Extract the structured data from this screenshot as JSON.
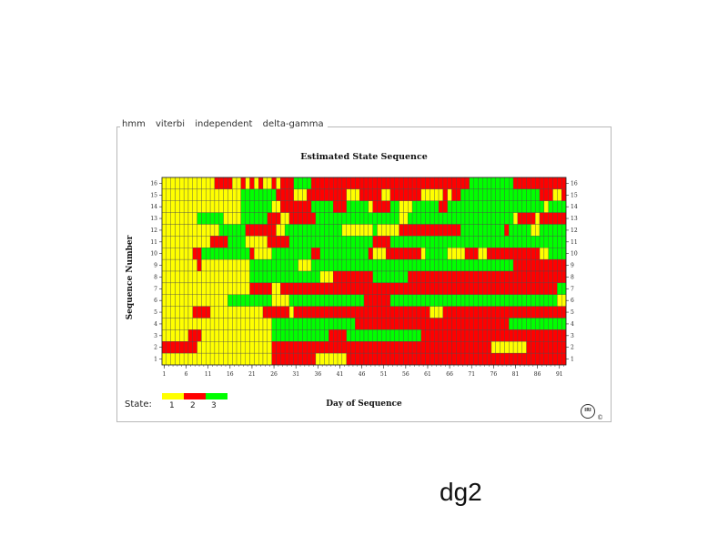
{
  "breadcrumb": [
    "hmm",
    "viterbi",
    "independent",
    "delta-gamma"
  ],
  "caption": "dg2",
  "logo_text": "IRI",
  "logo_mark": "©",
  "legend": {
    "label": "State:",
    "items": [
      {
        "label": "1",
        "color": "#ffff00"
      },
      {
        "label": "2",
        "color": "#ff0000"
      },
      {
        "label": "3",
        "color": "#00ff00"
      }
    ]
  },
  "chart_data": {
    "type": "heatmap",
    "title": "Estimated State Sequence",
    "xlabel": "Day of Sequence",
    "ylabel": "Sequence Number",
    "x_ticks": [
      1,
      6,
      11,
      16,
      21,
      26,
      31,
      36,
      41,
      46,
      51,
      56,
      61,
      66,
      71,
      76,
      81,
      86,
      91
    ],
    "y_ticks": [
      1,
      2,
      3,
      4,
      5,
      6,
      7,
      8,
      9,
      10,
      11,
      12,
      13,
      14,
      15,
      16
    ],
    "xlim": [
      1,
      92
    ],
    "ylim": [
      1,
      16
    ],
    "state_colors": {
      "1": "#ffff00",
      "2": "#ff0000",
      "3": "#00ff00"
    },
    "rows": [
      {
        "seq": 16,
        "runs": [
          [
            1,
            12,
            1
          ],
          [
            13,
            16,
            2
          ],
          [
            17,
            18,
            1
          ],
          [
            19,
            19,
            2
          ],
          [
            20,
            20,
            1
          ],
          [
            21,
            21,
            2
          ],
          [
            22,
            22,
            1
          ],
          [
            23,
            23,
            2
          ],
          [
            24,
            25,
            1
          ],
          [
            26,
            26,
            2
          ],
          [
            27,
            27,
            1
          ],
          [
            28,
            30,
            2
          ],
          [
            31,
            34,
            3
          ],
          [
            35,
            70,
            2
          ],
          [
            71,
            80,
            3
          ],
          [
            81,
            92,
            2
          ]
        ]
      },
      {
        "seq": 15,
        "runs": [
          [
            1,
            18,
            1
          ],
          [
            19,
            26,
            3
          ],
          [
            27,
            30,
            2
          ],
          [
            31,
            33,
            1
          ],
          [
            34,
            42,
            2
          ],
          [
            43,
            45,
            1
          ],
          [
            46,
            50,
            2
          ],
          [
            51,
            52,
            1
          ],
          [
            53,
            59,
            2
          ],
          [
            60,
            64,
            1
          ],
          [
            65,
            65,
            2
          ],
          [
            66,
            66,
            1
          ],
          [
            67,
            68,
            2
          ],
          [
            69,
            86,
            3
          ],
          [
            87,
            89,
            2
          ],
          [
            90,
            91,
            1
          ],
          [
            92,
            92,
            2
          ]
        ]
      },
      {
        "seq": 14,
        "runs": [
          [
            1,
            18,
            1
          ],
          [
            19,
            25,
            3
          ],
          [
            26,
            27,
            1
          ],
          [
            28,
            34,
            2
          ],
          [
            35,
            39,
            3
          ],
          [
            40,
            42,
            2
          ],
          [
            43,
            47,
            3
          ],
          [
            48,
            48,
            1
          ],
          [
            49,
            52,
            2
          ],
          [
            53,
            54,
            3
          ],
          [
            55,
            57,
            1
          ],
          [
            58,
            63,
            3
          ],
          [
            64,
            65,
            2
          ],
          [
            66,
            87,
            3
          ],
          [
            88,
            88,
            1
          ],
          [
            89,
            92,
            3
          ]
        ]
      },
      {
        "seq": 13,
        "runs": [
          [
            1,
            8,
            1
          ],
          [
            9,
            14,
            3
          ],
          [
            15,
            18,
            1
          ],
          [
            19,
            24,
            3
          ],
          [
            25,
            27,
            2
          ],
          [
            28,
            29,
            1
          ],
          [
            30,
            35,
            2
          ],
          [
            36,
            54,
            3
          ],
          [
            55,
            56,
            1
          ],
          [
            57,
            80,
            3
          ],
          [
            81,
            81,
            1
          ],
          [
            82,
            85,
            2
          ],
          [
            86,
            86,
            1
          ],
          [
            87,
            92,
            2
          ]
        ]
      },
      {
        "seq": 12,
        "runs": [
          [
            1,
            13,
            1
          ],
          [
            14,
            19,
            3
          ],
          [
            20,
            26,
            2
          ],
          [
            27,
            28,
            1
          ],
          [
            29,
            41,
            3
          ],
          [
            42,
            48,
            1
          ],
          [
            49,
            49,
            3
          ],
          [
            50,
            54,
            1
          ],
          [
            55,
            68,
            2
          ],
          [
            69,
            78,
            3
          ],
          [
            79,
            79,
            2
          ],
          [
            80,
            84,
            3
          ],
          [
            85,
            86,
            1
          ],
          [
            87,
            92,
            3
          ]
        ]
      },
      {
        "seq": 11,
        "runs": [
          [
            1,
            11,
            1
          ],
          [
            12,
            15,
            2
          ],
          [
            16,
            19,
            3
          ],
          [
            20,
            24,
            1
          ],
          [
            25,
            29,
            2
          ],
          [
            30,
            48,
            3
          ],
          [
            49,
            52,
            2
          ],
          [
            53,
            92,
            3
          ]
        ]
      },
      {
        "seq": 10,
        "runs": [
          [
            1,
            7,
            1
          ],
          [
            8,
            9,
            2
          ],
          [
            10,
            20,
            3
          ],
          [
            21,
            21,
            2
          ],
          [
            22,
            25,
            1
          ],
          [
            26,
            34,
            3
          ],
          [
            35,
            36,
            2
          ],
          [
            37,
            47,
            3
          ],
          [
            48,
            48,
            2
          ],
          [
            49,
            51,
            1
          ],
          [
            52,
            59,
            2
          ],
          [
            60,
            60,
            1
          ],
          [
            61,
            65,
            3
          ],
          [
            66,
            69,
            1
          ],
          [
            70,
            72,
            2
          ],
          [
            73,
            74,
            1
          ],
          [
            75,
            86,
            2
          ],
          [
            87,
            88,
            1
          ],
          [
            89,
            92,
            3
          ]
        ]
      },
      {
        "seq": 9,
        "runs": [
          [
            1,
            8,
            1
          ],
          [
            9,
            9,
            2
          ],
          [
            10,
            20,
            1
          ],
          [
            21,
            31,
            3
          ],
          [
            32,
            34,
            1
          ],
          [
            35,
            80,
            3
          ],
          [
            81,
            92,
            2
          ]
        ]
      },
      {
        "seq": 8,
        "runs": [
          [
            1,
            20,
            1
          ],
          [
            21,
            36,
            3
          ],
          [
            37,
            39,
            1
          ],
          [
            40,
            48,
            2
          ],
          [
            49,
            56,
            3
          ],
          [
            57,
            92,
            2
          ]
        ]
      },
      {
        "seq": 7,
        "runs": [
          [
            1,
            20,
            1
          ],
          [
            21,
            25,
            2
          ],
          [
            26,
            27,
            1
          ],
          [
            28,
            90,
            2
          ],
          [
            91,
            92,
            3
          ]
        ]
      },
      {
        "seq": 6,
        "runs": [
          [
            1,
            15,
            1
          ],
          [
            16,
            25,
            3
          ],
          [
            26,
            29,
            1
          ],
          [
            30,
            46,
            3
          ],
          [
            47,
            52,
            2
          ],
          [
            53,
            90,
            3
          ],
          [
            91,
            92,
            1
          ]
        ]
      },
      {
        "seq": 5,
        "runs": [
          [
            1,
            7,
            1
          ],
          [
            8,
            11,
            2
          ],
          [
            12,
            23,
            1
          ],
          [
            24,
            26,
            2
          ],
          [
            27,
            29,
            2
          ],
          [
            30,
            30,
            1
          ],
          [
            31,
            32,
            2
          ],
          [
            33,
            61,
            2
          ],
          [
            62,
            64,
            1
          ],
          [
            65,
            92,
            2
          ]
        ]
      },
      {
        "seq": 4,
        "runs": [
          [
            1,
            25,
            1
          ],
          [
            26,
            44,
            3
          ],
          [
            45,
            79,
            2
          ],
          [
            80,
            92,
            3
          ]
        ]
      },
      {
        "seq": 3,
        "runs": [
          [
            1,
            6,
            1
          ],
          [
            7,
            9,
            2
          ],
          [
            10,
            25,
            1
          ],
          [
            26,
            38,
            3
          ],
          [
            39,
            42,
            2
          ],
          [
            43,
            59,
            3
          ],
          [
            60,
            92,
            2
          ]
        ]
      },
      {
        "seq": 2,
        "runs": [
          [
            1,
            8,
            2
          ],
          [
            9,
            25,
            1
          ],
          [
            26,
            75,
            2
          ],
          [
            76,
            83,
            1
          ],
          [
            84,
            92,
            2
          ]
        ]
      },
      {
        "seq": 1,
        "runs": [
          [
            1,
            25,
            1
          ],
          [
            26,
            35,
            2
          ],
          [
            36,
            42,
            1
          ],
          [
            43,
            92,
            2
          ]
        ]
      }
    ]
  }
}
